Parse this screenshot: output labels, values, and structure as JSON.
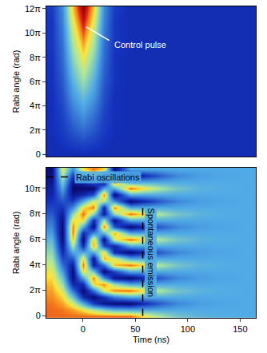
{
  "chart_data": [
    {
      "type": "heatmap",
      "ylabel": "Rabi angle (rad)",
      "tick_labels": "y",
      "xlim": [
        -35,
        165
      ],
      "ylim": [
        -0.6,
        38.3
      ],
      "yticks": [
        0,
        {
          "value": 6.283,
          "label": "2π"
        },
        {
          "value": 12.566,
          "label": "4π"
        },
        {
          "value": 18.85,
          "label": "6π"
        },
        {
          "value": 25.133,
          "label": "8π"
        },
        {
          "value": 31.416,
          "label": "10π"
        },
        {
          "value": 37.699,
          "label": "12π"
        }
      ],
      "zlim": [
        0,
        1
      ],
      "x": [
        -30,
        -20,
        -10,
        0,
        10,
        20,
        30,
        45,
        60,
        75,
        90,
        110,
        130,
        160
      ],
      "y": [
        0,
        3.142,
        6.283,
        9.425,
        12.566,
        15.708,
        18.85,
        21.991,
        25.133,
        28.274,
        31.416,
        34.558,
        37.699
      ],
      "z": [
        [
          0.13,
          0.13,
          0.13,
          0.13,
          0.13,
          0.13,
          0.13,
          0.13,
          0.13,
          0.13,
          0.13,
          0.13,
          0.13,
          0.13
        ],
        [
          0.13,
          0.15,
          0.18,
          0.2,
          0.18,
          0.15,
          0.13,
          0.13,
          0.13,
          0.13,
          0.13,
          0.13,
          0.13,
          0.13
        ],
        [
          0.14,
          0.17,
          0.23,
          0.28,
          0.23,
          0.17,
          0.14,
          0.13,
          0.13,
          0.13,
          0.13,
          0.13,
          0.13,
          0.13
        ],
        [
          0.14,
          0.18,
          0.28,
          0.35,
          0.28,
          0.18,
          0.14,
          0.13,
          0.13,
          0.13,
          0.13,
          0.13,
          0.13,
          0.13
        ],
        [
          0.14,
          0.2,
          0.34,
          0.42,
          0.34,
          0.2,
          0.14,
          0.13,
          0.13,
          0.13,
          0.13,
          0.13,
          0.13,
          0.13
        ],
        [
          0.14,
          0.22,
          0.39,
          0.49,
          0.39,
          0.22,
          0.14,
          0.13,
          0.13,
          0.13,
          0.13,
          0.13,
          0.13,
          0.13
        ],
        [
          0.15,
          0.24,
          0.44,
          0.57,
          0.44,
          0.24,
          0.15,
          0.13,
          0.13,
          0.13,
          0.13,
          0.13,
          0.13,
          0.13
        ],
        [
          0.15,
          0.26,
          0.49,
          0.64,
          0.49,
          0.26,
          0.15,
          0.13,
          0.13,
          0.13,
          0.13,
          0.13,
          0.13,
          0.13
        ],
        [
          0.15,
          0.28,
          0.54,
          0.71,
          0.54,
          0.28,
          0.15,
          0.13,
          0.13,
          0.13,
          0.13,
          0.13,
          0.13,
          0.13
        ],
        [
          0.16,
          0.29,
          0.59,
          0.78,
          0.59,
          0.29,
          0.16,
          0.13,
          0.13,
          0.13,
          0.13,
          0.13,
          0.13,
          0.13
        ],
        [
          0.16,
          0.31,
          0.64,
          0.86,
          0.64,
          0.31,
          0.16,
          0.13,
          0.13,
          0.13,
          0.13,
          0.13,
          0.13,
          0.13
        ],
        [
          0.16,
          0.33,
          0.7,
          0.93,
          0.7,
          0.33,
          0.16,
          0.13,
          0.13,
          0.13,
          0.13,
          0.13,
          0.13,
          0.13
        ],
        [
          0.17,
          0.35,
          0.75,
          1,
          0.75,
          0.35,
          0.17,
          0.13,
          0.13,
          0.13,
          0.13,
          0.13,
          0.13,
          0.13
        ]
      ],
      "annotations": [
        {
          "text": "Control pulse",
          "x": 28,
          "y": 28.3,
          "color": "white",
          "line": {
            "x": [
              3,
              25
            ],
            "y": [
              33,
              29.5
            ],
            "line_style": "solid",
            "color": "white"
          }
        }
      ]
    },
    {
      "type": "heatmap",
      "xlabel": "Time (ns)",
      "ylabel": "Rabi angle (rad)",
      "xlim": [
        -35,
        165
      ],
      "xticks": [
        0,
        50,
        100,
        150
      ],
      "ylim": [
        -0.5,
        36.5
      ],
      "yticks": [
        0,
        {
          "value": 6.283,
          "label": "2π"
        },
        {
          "value": 12.566,
          "label": "4π"
        },
        {
          "value": 18.85,
          "label": "6π"
        },
        {
          "value": 25.133,
          "label": "8π"
        },
        {
          "value": 31.416,
          "label": "10π"
        }
      ],
      "zlim": [
        0,
        1
      ],
      "x": [
        -30,
        -20,
        -10,
        0,
        10,
        20,
        30,
        45,
        60,
        75,
        90,
        110,
        130,
        160
      ],
      "y": [
        0,
        1.571,
        3.142,
        4.712,
        6.283,
        7.854,
        9.425,
        10.996,
        12.566,
        14.137,
        15.708,
        17.279,
        18.85,
        20.42,
        21.991,
        23.562,
        25.133,
        26.704,
        28.274,
        29.845,
        31.416,
        32.987,
        34.558,
        36.128
      ],
      "z": [
        [
          0.84,
          0.84,
          0.84,
          0.84,
          0.84,
          0.84,
          0.84,
          0.84,
          0.71,
          0.59,
          0.5,
          0.45,
          0.43,
          0.42
        ],
        [
          0.84,
          0.83,
          0.79,
          0.72,
          0.61,
          0.52,
          0.45,
          0.42,
          0.42,
          0.42,
          0.42,
          0.42,
          0.42,
          0.42
        ],
        [
          0.83,
          0.79,
          0.67,
          0.42,
          0.17,
          0.05,
          0.01,
          0,
          0.13,
          0.25,
          0.34,
          0.39,
          0.41,
          0.42
        ],
        [
          0.81,
          0.74,
          0.49,
          0.12,
          0.01,
          0.15,
          0.32,
          0.42,
          0.42,
          0.42,
          0.42,
          0.42,
          0.42,
          0.42
        ],
        [
          0.79,
          0.67,
          0.29,
          0,
          0.29,
          0.67,
          0.82,
          0.84,
          0.71,
          0.59,
          0.5,
          0.45,
          0.43,
          0.42
        ],
        [
          0.76,
          0.58,
          0.12,
          0.12,
          0.72,
          0.81,
          0.58,
          0.42,
          0.42,
          0.42,
          0.42,
          0.42,
          0.42,
          0.42
        ],
        [
          0.73,
          0.49,
          0.02,
          0.42,
          0.82,
          0.35,
          0.05,
          0,
          0.13,
          0.25,
          0.34,
          0.39,
          0.41,
          0.42
        ],
        [
          0.69,
          0.39,
          0.01,
          0.72,
          0.49,
          0,
          0.19,
          0.42,
          0.42,
          0.42,
          0.42,
          0.42,
          0.42,
          0.42
        ],
        [
          0.65,
          0.29,
          0.08,
          0.84,
          0.08,
          0.29,
          0.76,
          0.84,
          0.71,
          0.59,
          0.5,
          0.45,
          0.43,
          0.42
        ],
        [
          0.6,
          0.2,
          0.23,
          0.72,
          0.05,
          0.78,
          0.69,
          0.42,
          0.42,
          0.42,
          0.42,
          0.42,
          0.42,
          0.42
        ],
        [
          0.55,
          0.12,
          0.42,
          0.42,
          0.42,
          0.72,
          0.12,
          0,
          0.13,
          0.25,
          0.34,
          0.39,
          0.41,
          0.42
        ],
        [
          0.5,
          0.06,
          0.61,
          0.12,
          0.79,
          0.2,
          0.1,
          0.42,
          0.42,
          0.42,
          0.42,
          0.42,
          0.42,
          0.42
        ],
        [
          0.45,
          0.02,
          0.76,
          0,
          0.76,
          0.02,
          0.67,
          0.84,
          0.71,
          0.59,
          0.5,
          0.45,
          0.43,
          0.42
        ],
        [
          0.39,
          0,
          0.83,
          0.12,
          0.35,
          0.45,
          0.78,
          0.42,
          0.42,
          0.42,
          0.42,
          0.42,
          0.42,
          0.42
        ],
        [
          0.34,
          0.01,
          0.82,
          0.42,
          0.02,
          0.83,
          0.23,
          0,
          0.13,
          0.25,
          0.34,
          0.39,
          0.41,
          0.42
        ],
        [
          0.29,
          0.03,
          0.72,
          0.72,
          0.12,
          0.58,
          0.03,
          0.42,
          0.42,
          0.42,
          0.42,
          0.42,
          0.42,
          0.42
        ],
        [
          0.24,
          0.08,
          0.55,
          0.84,
          0.55,
          0.08,
          0.55,
          0.84,
          0.71,
          0.59,
          0.5,
          0.45,
          0.43,
          0.42
        ],
        [
          0.19,
          0.15,
          0.35,
          0.72,
          0.83,
          0.1,
          0.83,
          0.42,
          0.42,
          0.42,
          0.42,
          0.42,
          0.42,
          0.42
        ],
        [
          0.15,
          0.23,
          0.17,
          0.42,
          0.67,
          0.61,
          0.35,
          0,
          0.13,
          0.25,
          0.34,
          0.39,
          0.41,
          0.42
        ],
        [
          0.11,
          0.32,
          0.05,
          0.12,
          0.23,
          0.83,
          0,
          0.42,
          0.42,
          0.42,
          0.42,
          0.42,
          0.42,
          0.42
        ],
        [
          0.08,
          0.42,
          0,
          0,
          0,
          0.42,
          0.42,
          0.84,
          0.71,
          0.59,
          0.5,
          0.45,
          0.43,
          0.42
        ],
        [
          0.05,
          0.52,
          0.05,
          0.12,
          0.23,
          0.01,
          0.84,
          0.42,
          0.42,
          0.42,
          0.42,
          0.42,
          0.42,
          0.42
        ],
        [
          0.03,
          0.61,
          0.17,
          0.42,
          0.67,
          0.23,
          0.49,
          0,
          0.13,
          0.25,
          0.34,
          0.39,
          0.41,
          0.42
        ],
        [
          0.01,
          0.69,
          0.35,
          0.72,
          0.83,
          0.74,
          0.01,
          0.42,
          0.42,
          0.42,
          0.42,
          0.42,
          0.42,
          0.42
        ]
      ],
      "annotations": [
        {
          "text": "Rabi oscillations",
          "x": -8,
          "y": 34.2,
          "color": "black",
          "line": {
            "x": [
              -35,
              -12
            ],
            "y": [
              34.2,
              34.2
            ],
            "line_style": "dashed",
            "color": "black"
          }
        },
        {
          "text": "Spontaneous emission",
          "x": 65,
          "y": 15.7,
          "color": "black",
          "orientation": "vertical",
          "line": {
            "x": [
              57,
              57
            ],
            "y": [
              0,
              27.3
            ],
            "line_style": "dashed",
            "color": "black"
          }
        }
      ]
    }
  ]
}
